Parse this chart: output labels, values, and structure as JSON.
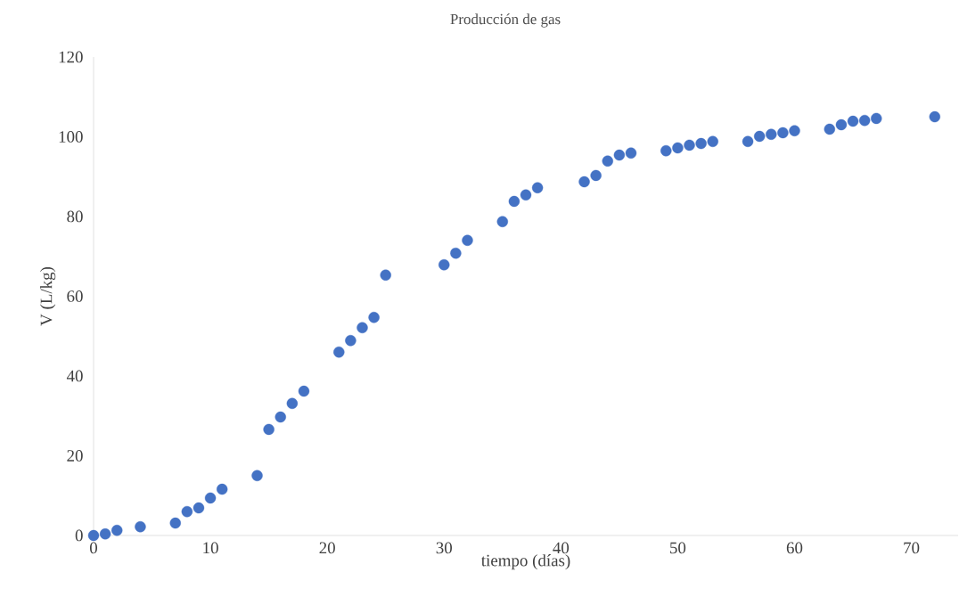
{
  "chart_data": {
    "type": "scatter",
    "title": "Producción de gas",
    "xlabel": "tiempo (días)",
    "ylabel": "V (L/kg)",
    "x": [
      0,
      1,
      2,
      4,
      7,
      8,
      9,
      10,
      11,
      14,
      15,
      16,
      17,
      18,
      21,
      22,
      23,
      24,
      25,
      30,
      31,
      32,
      35,
      36,
      37,
      38,
      42,
      43,
      44,
      45,
      46,
      49,
      50,
      51,
      52,
      53,
      56,
      57,
      58,
      59,
      60,
      63,
      64,
      65,
      66,
      67,
      72
    ],
    "values": [
      0,
      0.4,
      1.3,
      2.2,
      3.1,
      6.0,
      6.9,
      9.4,
      11.6,
      15.0,
      26.6,
      29.7,
      33.1,
      36.2,
      46.0,
      48.9,
      52.1,
      54.7,
      65.3,
      67.9,
      70.8,
      74.0,
      78.7,
      83.8,
      85.4,
      87.2,
      88.7,
      90.3,
      93.9,
      95.4,
      95.9,
      96.5,
      97.2,
      97.9,
      98.3,
      98.8,
      98.8,
      100.1,
      100.6,
      101.0,
      101.5,
      101.9,
      103.0,
      103.9,
      104.1,
      104.6,
      105.0
    ],
    "color": "#4472c4",
    "marker": "circle",
    "xlim": [
      0,
      74
    ],
    "ylim": [
      0,
      120
    ],
    "xticks": [
      0,
      10,
      20,
      30,
      40,
      50,
      60,
      70
    ],
    "yticks": [
      0,
      20,
      40,
      60,
      80,
      100,
      120
    ]
  }
}
